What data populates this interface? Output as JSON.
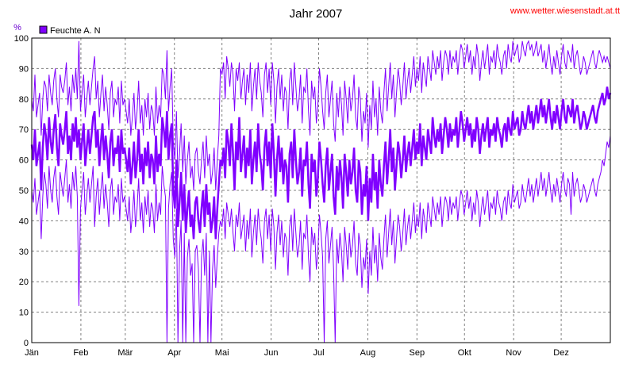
{
  "chart_data": {
    "type": "line",
    "title": "Jahr 2007",
    "source_text": "www.wetter.wiesenstadt.at.tt",
    "ylabel": "%",
    "ylim": [
      0,
      100
    ],
    "yticks": [
      0,
      10,
      20,
      30,
      40,
      50,
      60,
      70,
      80,
      90,
      100
    ],
    "grid": true,
    "legend_position": "top-left",
    "xlim": [
      0,
      365
    ],
    "months": [
      {
        "label": "Jän",
        "day": 0
      },
      {
        "label": "Feb",
        "day": 31
      },
      {
        "label": "Mär",
        "day": 59
      },
      {
        "label": "Apr",
        "day": 90
      },
      {
        "label": "Mai",
        "day": 120
      },
      {
        "label": "Jun",
        "day": 151
      },
      {
        "label": "Jul",
        "day": 181
      },
      {
        "label": "Aug",
        "day": 212
      },
      {
        "label": "Sep",
        "day": 243
      },
      {
        "label": "Okt",
        "day": 273
      },
      {
        "label": "Nov",
        "day": 304
      },
      {
        "label": "Dez",
        "day": 334
      }
    ],
    "series": [
      {
        "name": "Feuchte A. N",
        "color": "#8000ff",
        "avg": [
          65,
          60,
          70,
          58,
          62,
          66,
          50,
          64,
          72,
          68,
          60,
          74,
          66,
          62,
          70,
          75,
          64,
          58,
          72,
          68,
          65,
          70,
          76,
          62,
          68,
          60,
          72,
          66,
          74,
          64,
          70,
          60,
          66,
          72,
          58,
          64,
          70,
          62,
          68,
          74,
          76,
          64,
          70,
          58,
          66,
          72,
          60,
          68,
          62,
          54,
          66,
          70,
          58,
          64,
          62,
          68,
          56,
          70,
          62,
          64,
          60,
          56,
          64,
          52,
          58,
          66,
          54,
          60,
          70,
          56,
          62,
          52,
          64,
          58,
          66,
          54,
          62,
          60,
          52,
          68,
          56,
          62,
          58,
          74,
          70,
          64,
          76,
          60,
          68,
          72,
          50,
          44,
          60,
          38,
          46,
          56,
          40,
          52,
          36,
          44,
          50,
          38,
          42,
          34,
          46,
          48,
          40,
          36,
          44,
          50,
          38,
          52,
          42,
          46,
          36,
          40,
          48,
          34,
          44,
          52,
          60,
          58,
          64,
          54,
          70,
          66,
          58,
          72,
          62,
          50,
          66,
          60,
          74,
          56,
          62,
          68,
          54,
          64,
          58,
          70,
          52,
          60,
          66,
          56,
          72,
          62,
          58,
          50,
          64,
          70,
          58,
          66,
          54,
          72,
          62,
          48,
          60,
          68,
          56,
          64,
          52,
          60,
          58,
          46,
          62,
          66,
          54,
          70,
          60,
          52,
          56,
          64,
          48,
          60,
          58,
          66,
          52,
          44,
          62,
          56,
          60,
          48,
          54,
          66,
          60,
          52,
          46,
          58,
          64,
          50,
          56,
          62,
          48,
          42,
          58,
          50,
          60,
          54,
          44,
          62,
          56,
          48,
          60,
          52,
          56,
          64,
          50,
          46,
          60,
          56,
          42,
          52,
          48,
          58,
          40,
          54,
          46,
          62,
          50,
          56,
          44,
          60,
          52,
          48,
          58,
          66,
          52,
          60,
          70,
          56,
          64,
          50,
          58,
          66,
          62,
          54,
          60,
          68,
          56,
          62,
          66,
          58,
          64,
          70,
          60,
          66,
          62,
          72,
          58,
          68,
          64,
          60,
          70,
          66,
          62,
          74,
          68,
          64,
          70,
          66,
          72,
          62,
          68,
          74,
          70,
          64,
          72,
          66,
          70,
          68,
          74,
          64,
          70,
          76,
          72,
          66,
          70,
          74,
          68,
          72,
          64,
          70,
          66,
          74,
          70,
          62,
          68,
          72,
          66,
          70,
          74,
          64,
          70,
          68,
          72,
          66,
          74,
          70,
          68,
          64,
          70,
          72,
          66,
          74,
          70,
          68,
          76,
          70,
          72,
          74,
          68,
          70,
          76,
          72,
          70,
          74,
          78,
          72,
          76,
          70,
          74,
          78,
          72,
          76,
          80,
          74,
          78,
          72,
          76,
          80,
          74,
          70,
          76,
          72,
          78,
          74,
          70,
          76,
          80,
          74,
          72,
          78,
          76,
          74,
          80,
          72,
          76,
          78,
          74,
          70,
          72,
          76,
          74,
          70,
          72,
          74,
          76,
          78,
          74,
          72,
          76,
          78,
          80,
          82,
          78,
          80,
          84,
          80,
          82
        ],
        "max": [
          80,
          76,
          88,
          74,
          78,
          82,
          68,
          80,
          86,
          84,
          76,
          88,
          82,
          78,
          86,
          90,
          80,
          74,
          88,
          84,
          82,
          86,
          92,
          78,
          84,
          76,
          88,
          82,
          90,
          80,
          99,
          76,
          82,
          88,
          74,
          80,
          86,
          78,
          84,
          90,
          94,
          80,
          86,
          74,
          82,
          88,
          76,
          84,
          78,
          70,
          82,
          86,
          74,
          80,
          78,
          84,
          72,
          86,
          78,
          80,
          76,
          72,
          80,
          68,
          74,
          82,
          70,
          76,
          86,
          72,
          78,
          68,
          80,
          74,
          82,
          70,
          78,
          76,
          68,
          84,
          72,
          78,
          74,
          90,
          88,
          80,
          96,
          76,
          84,
          90,
          66,
          60,
          76,
          54,
          62,
          72,
          56,
          68,
          52,
          60,
          66,
          54,
          58,
          50,
          62,
          64,
          56,
          52,
          60,
          66,
          54,
          68,
          58,
          62,
          52,
          56,
          64,
          50,
          60,
          68,
          90,
          88,
          92,
          80,
          94,
          90,
          84,
          92,
          88,
          76,
          90,
          86,
          92,
          80,
          86,
          90,
          78,
          88,
          82,
          92,
          76,
          84,
          90,
          80,
          92,
          86,
          82,
          74,
          88,
          92,
          82,
          90,
          78,
          92,
          86,
          72,
          84,
          90,
          80,
          88,
          76,
          84,
          82,
          70,
          86,
          90,
          78,
          92,
          84,
          76,
          80,
          88,
          72,
          84,
          82,
          90,
          76,
          68,
          86,
          80,
          84,
          72,
          78,
          90,
          84,
          76,
          70,
          82,
          88,
          74,
          80,
          86,
          72,
          66,
          82,
          74,
          84,
          78,
          68,
          86,
          80,
          72,
          84,
          76,
          80,
          88,
          74,
          70,
          84,
          80,
          66,
          76,
          72,
          82,
          64,
          78,
          70,
          86,
          74,
          80,
          68,
          84,
          76,
          72,
          82,
          90,
          76,
          84,
          92,
          80,
          88,
          74,
          82,
          90,
          86,
          78,
          84,
          92,
          80,
          86,
          90,
          82,
          88,
          94,
          84,
          90,
          86,
          94,
          82,
          92,
          88,
          84,
          94,
          90,
          86,
          96,
          92,
          88,
          94,
          90,
          96,
          86,
          92,
          96,
          94,
          88,
          96,
          90,
          94,
          92,
          96,
          88,
          94,
          98,
          96,
          90,
          94,
          98,
          92,
          96,
          88,
          94,
          90,
          98,
          94,
          86,
          92,
          96,
          90,
          94,
          98,
          88,
          94,
          92,
          96,
          90,
          98,
          94,
          92,
          88,
          94,
          96,
          90,
          98,
          94,
          92,
          99,
          94,
          96,
          98,
          92,
          94,
          99,
          96,
          94,
          98,
          99,
          96,
          98,
          94,
          96,
          99,
          94,
          96,
          98,
          92,
          96,
          90,
          94,
          98,
          92,
          88,
          94,
          90,
          96,
          92,
          88,
          94,
          98,
          92,
          90,
          96,
          94,
          92,
          98,
          90,
          94,
          96,
          92,
          88,
          90,
          94,
          92,
          88,
          90,
          92,
          94,
          96,
          92,
          90,
          94,
          96,
          94,
          92,
          94,
          92,
          94,
          92,
          90
        ],
        "min": [
          50,
          46,
          54,
          42,
          46,
          50,
          34,
          48,
          56,
          52,
          44,
          58,
          50,
          46,
          54,
          58,
          48,
          42,
          56,
          52,
          48,
          54,
          60,
          46,
          52,
          44,
          56,
          50,
          58,
          48,
          12,
          44,
          50,
          56,
          42,
          48,
          54,
          46,
          52,
          58,
          38,
          48,
          54,
          42,
          50,
          56,
          44,
          52,
          46,
          38,
          50,
          54,
          42,
          48,
          46,
          52,
          40,
          54,
          46,
          48,
          44,
          40,
          48,
          36,
          42,
          50,
          38,
          44,
          54,
          40,
          46,
          36,
          48,
          42,
          50,
          38,
          46,
          44,
          36,
          52,
          40,
          46,
          42,
          58,
          52,
          48,
          0,
          44,
          52,
          56,
          34,
          28,
          44,
          0,
          30,
          40,
          0,
          36,
          0,
          28,
          34,
          22,
          26,
          0,
          30,
          32,
          24,
          0,
          28,
          34,
          22,
          36,
          0,
          30,
          0,
          24,
          32,
          18,
          28,
          36,
          40,
          38,
          44,
          34,
          46,
          42,
          38,
          44,
          36,
          30,
          42,
          38,
          46,
          34,
          38,
          42,
          30,
          40,
          34,
          44,
          28,
          36,
          42,
          32,
          44,
          38,
          34,
          26,
          40,
          44,
          34,
          42,
          30,
          44,
          38,
          24,
          36,
          42,
          32,
          40,
          28,
          36,
          34,
          22,
          38,
          42,
          30,
          44,
          36,
          28,
          32,
          40,
          24,
          36,
          34,
          42,
          28,
          20,
          38,
          32,
          36,
          24,
          30,
          42,
          36,
          28,
          0,
          34,
          40,
          26,
          32,
          38,
          24,
          0,
          34,
          26,
          36,
          30,
          20,
          38,
          32,
          24,
          36,
          28,
          32,
          40,
          26,
          22,
          36,
          32,
          18,
          28,
          24,
          34,
          16,
          30,
          22,
          38,
          26,
          32,
          20,
          36,
          28,
          24,
          34,
          42,
          28,
          36,
          44,
          32,
          40,
          26,
          34,
          42,
          38,
          30,
          36,
          44,
          32,
          38,
          42,
          34,
          40,
          46,
          36,
          42,
          38,
          46,
          34,
          44,
          40,
          36,
          46,
          42,
          38,
          48,
          44,
          40,
          46,
          42,
          48,
          38,
          44,
          48,
          46,
          40,
          48,
          42,
          46,
          44,
          48,
          40,
          46,
          50,
          48,
          42,
          46,
          50,
          44,
          48,
          40,
          46,
          42,
          50,
          46,
          38,
          44,
          48,
          42,
          46,
          50,
          40,
          46,
          44,
          48,
          42,
          50,
          46,
          44,
          40,
          46,
          48,
          42,
          50,
          46,
          44,
          52,
          46,
          48,
          50,
          44,
          46,
          52,
          48,
          46,
          50,
          54,
          48,
          52,
          46,
          50,
          54,
          48,
          52,
          56,
          50,
          54,
          48,
          52,
          56,
          50,
          46,
          52,
          48,
          54,
          50,
          46,
          52,
          56,
          50,
          48,
          54,
          52,
          42,
          56,
          48,
          52,
          54,
          50,
          46,
          48,
          52,
          50,
          46,
          48,
          50,
          52,
          54,
          50,
          48,
          52,
          54,
          56,
          60,
          58,
          62,
          66,
          64,
          68
        ]
      }
    ]
  }
}
